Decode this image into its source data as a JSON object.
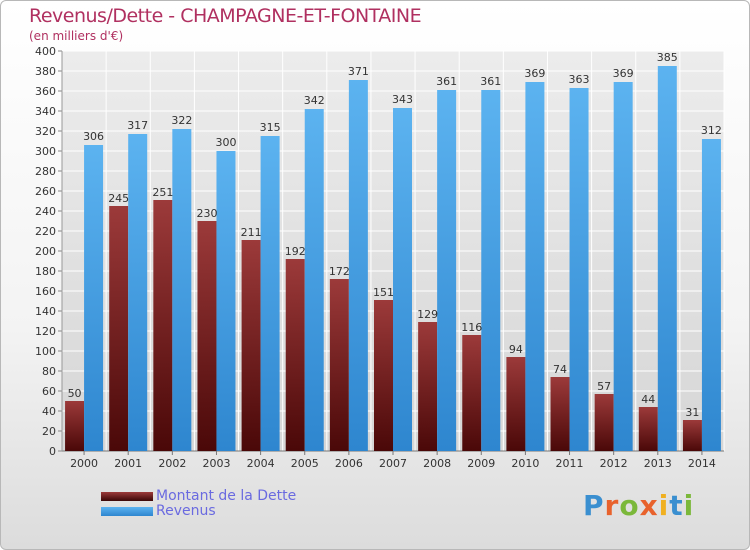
{
  "header": {
    "title": "Revenus/Dette - CHAMPAGNE-ET-FONTAINE",
    "subtitle": "(en milliers d'€)"
  },
  "logo": {
    "text": "Proxiti"
  },
  "colors": {
    "dette": "#7a1c1c",
    "revenus": "#4aa3e8",
    "grid": "#ffffff",
    "axis_text": "#333333"
  },
  "chart_data": {
    "type": "bar",
    "categories": [
      "2000",
      "2001",
      "2002",
      "2003",
      "2004",
      "2005",
      "2006",
      "2007",
      "2008",
      "2009",
      "2010",
      "2011",
      "2012",
      "2013",
      "2014"
    ],
    "series": [
      {
        "name": "Montant de la Dette",
        "values": [
          50,
          245,
          251,
          230,
          211,
          192,
          172,
          151,
          129,
          116,
          94,
          74,
          57,
          44,
          31
        ]
      },
      {
        "name": "Revenus",
        "values": [
          306,
          317,
          322,
          300,
          315,
          342,
          371,
          343,
          361,
          361,
          369,
          363,
          369,
          385,
          312
        ]
      }
    ],
    "ylim": [
      0,
      400
    ],
    "ytick_step": 20,
    "grid": true,
    "legend_position": "bottom-left"
  }
}
